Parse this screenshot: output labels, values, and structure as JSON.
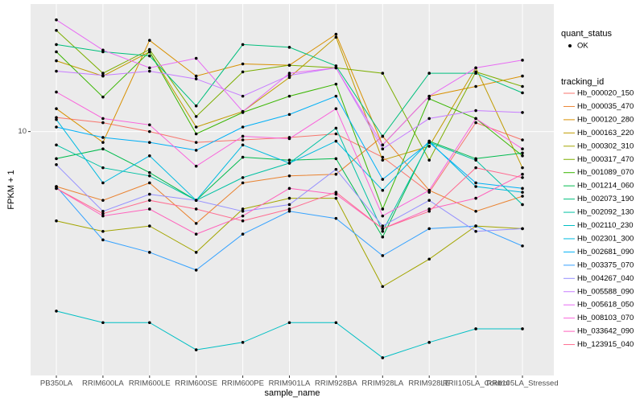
{
  "chart_data": {
    "type": "line",
    "log_y": true,
    "grid": true,
    "x_label": "sample_name",
    "y_label": "FPKM + 1",
    "legend_shape_title": "quant_status",
    "legend_shape_entry": "OK",
    "legend_title": "tracking_id",
    "categories": [
      "PB350LA",
      "RRIM600LA",
      "RRIM600LE",
      "RRIM600SE",
      "RRIM600PE",
      "RRIM901LA",
      "RRIM928BA",
      "RRIM928LA",
      "RRIM928LE",
      "RRII105LA_Control",
      "RRII105LA_Stressed"
    ],
    "ylim": [
      1.2,
      30.3
    ],
    "yticks": [
      10
    ],
    "series": [
      {
        "name": "Hb_000020_150",
        "color": "#F8766D",
        "values": [
          11.3,
          10.8,
          10.0,
          9.1,
          9.3,
          9.5,
          9.8,
          8.0,
          5.9,
          10.8,
          9.3
        ]
      },
      {
        "name": "Hb_000035_470",
        "color": "#EA8331",
        "values": [
          6.2,
          5.5,
          6.4,
          4.5,
          6.4,
          6.8,
          6.9,
          9.6,
          6.0,
          5.0,
          5.7
        ]
      },
      {
        "name": "Hb_000120_280",
        "color": "#D89000",
        "values": [
          12.2,
          9.1,
          22.1,
          16.2,
          18.0,
          17.8,
          23.3,
          8.9,
          13.6,
          14.8,
          16.2
        ]
      },
      {
        "name": "Hb_000163_220",
        "color": "#C09B00",
        "values": [
          18.5,
          16.2,
          20.0,
          10.4,
          11.9,
          16.0,
          22.7,
          7.8,
          8.8,
          17.4,
          7.3
        ]
      },
      {
        "name": "Hb_000302_310",
        "color": "#A3A500",
        "values": [
          4.6,
          4.2,
          4.4,
          3.5,
          5.1,
          5.6,
          5.6,
          2.6,
          3.3,
          4.4,
          4.3
        ]
      },
      {
        "name": "Hb_000317_470",
        "color": "#7CAE00",
        "values": [
          24.1,
          16.6,
          20.4,
          11.4,
          16.8,
          17.8,
          17.4,
          16.6,
          7.8,
          16.8,
          14.8
        ]
      },
      {
        "name": "Hb_001089_070",
        "color": "#39B600",
        "values": [
          20.0,
          13.5,
          20.0,
          9.8,
          11.8,
          13.6,
          15.1,
          5.1,
          13.3,
          11.2,
          8.1
        ]
      },
      {
        "name": "Hb_001214_060",
        "color": "#00BB4E",
        "values": [
          7.9,
          8.6,
          7.0,
          5.5,
          8.0,
          7.8,
          7.9,
          4.0,
          9.2,
          7.9,
          8.3
        ]
      },
      {
        "name": "Hb_002073_190",
        "color": "#00BF7D",
        "values": [
          21.3,
          20.0,
          19.3,
          12.5,
          21.3,
          20.8,
          17.7,
          9.6,
          16.6,
          16.6,
          14.0
        ]
      },
      {
        "name": "Hb_002092_130",
        "color": "#00C1A3",
        "values": [
          8.9,
          7.3,
          6.8,
          5.5,
          6.7,
          7.6,
          10.3,
          4.2,
          9.1,
          7.8,
          5.3
        ]
      },
      {
        "name": "Hb_002110_230",
        "color": "#00BFC4",
        "values": [
          2.1,
          1.9,
          1.9,
          1.5,
          1.6,
          1.9,
          1.9,
          1.4,
          1.6,
          1.8,
          1.8
        ]
      },
      {
        "name": "Hb_002301_300",
        "color": "#00BAE0",
        "values": [
          11.1,
          6.4,
          8.1,
          5.5,
          8.9,
          7.6,
          9.2,
          6.0,
          9.2,
          6.2,
          5.9
        ]
      },
      {
        "name": "Hb_002681_090",
        "color": "#00B0F6",
        "values": [
          10.4,
          9.5,
          9.1,
          8.5,
          10.4,
          11.6,
          13.6,
          6.6,
          9.1,
          6.4,
          6.1
        ]
      },
      {
        "name": "Hb_003375_070",
        "color": "#35A2FF",
        "values": [
          6.2,
          3.9,
          3.5,
          3.0,
          4.1,
          5.0,
          4.7,
          3.4,
          4.3,
          4.4,
          3.7
        ]
      },
      {
        "name": "Hb_004267_040",
        "color": "#9590FF",
        "values": [
          7.5,
          5.0,
          5.8,
          5.5,
          5.0,
          5.3,
          7.2,
          4.4,
          5.5,
          4.2,
          4.3
        ]
      },
      {
        "name": "Hb_005588_090",
        "color": "#C77CFF",
        "values": [
          16.9,
          16.3,
          16.9,
          15.8,
          13.6,
          16.3,
          17.4,
          8.6,
          11.2,
          12.0,
          11.8
        ]
      },
      {
        "name": "Hb_005618_050",
        "color": "#E76BF3",
        "values": [
          26.4,
          20.3,
          17.4,
          18.9,
          11.9,
          16.6,
          17.4,
          8.9,
          13.6,
          17.4,
          18.6
        ]
      },
      {
        "name": "Hb_008103_070",
        "color": "#FA62DB",
        "values": [
          14.1,
          11.2,
          10.6,
          7.4,
          9.6,
          9.4,
          12.2,
          4.8,
          6.0,
          11.2,
          8.6
        ]
      },
      {
        "name": "Hb_033642_090",
        "color": "#FF62BC",
        "values": [
          6.1,
          4.8,
          5.1,
          4.1,
          4.8,
          6.1,
          5.8,
          4.3,
          5.1,
          5.6,
          6.9
        ]
      },
      {
        "name": "Hb_123915_040",
        "color": "#FF6C91",
        "values": [
          6.1,
          4.9,
          5.5,
          5.1,
          4.6,
          5.1,
          5.9,
          4.3,
          5.0,
          7.3,
          6.7
        ]
      }
    ]
  }
}
